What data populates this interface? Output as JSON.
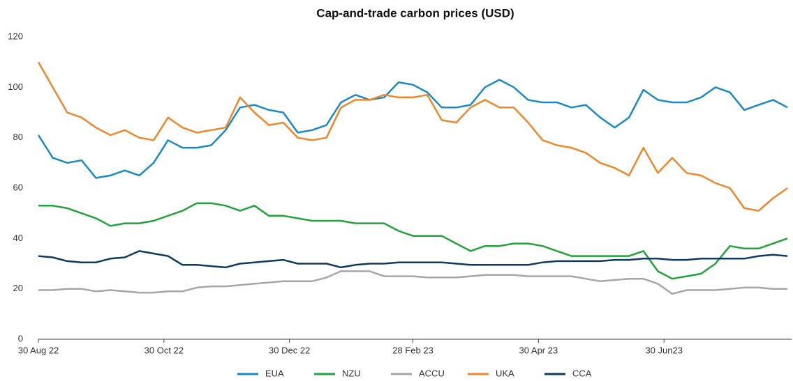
{
  "chart_data": {
    "type": "line",
    "title": "Cap-and-trade carbon prices (USD)",
    "x": [
      "2022-08-30",
      "2022-09-06",
      "2022-09-13",
      "2022-09-20",
      "2022-09-27",
      "2022-10-04",
      "2022-10-11",
      "2022-10-18",
      "2022-10-25",
      "2022-11-01",
      "2022-11-08",
      "2022-11-15",
      "2022-11-22",
      "2022-11-29",
      "2022-12-06",
      "2022-12-13",
      "2022-12-20",
      "2022-12-27",
      "2023-01-03",
      "2023-01-10",
      "2023-01-17",
      "2023-01-24",
      "2023-01-31",
      "2023-02-07",
      "2023-02-14",
      "2023-02-21",
      "2023-02-28",
      "2023-03-07",
      "2023-03-14",
      "2023-03-21",
      "2023-03-28",
      "2023-04-04",
      "2023-04-11",
      "2023-04-18",
      "2023-04-25",
      "2023-05-02",
      "2023-05-09",
      "2023-05-16",
      "2023-05-23",
      "2023-05-30",
      "2023-06-06",
      "2023-06-13",
      "2023-06-20",
      "2023-06-27",
      "2023-07-04",
      "2023-07-11",
      "2023-07-18",
      "2023-07-25",
      "2023-08-01",
      "2023-08-08",
      "2023-08-15",
      "2023-08-22",
      "2023-08-29"
    ],
    "series": [
      {
        "name": "EUA",
        "color": "#1a8ac6",
        "values": [
          81,
          72,
          70,
          71,
          64,
          65,
          67,
          65,
          70,
          79,
          76,
          76,
          77,
          83,
          92,
          93,
          91,
          90,
          82,
          83,
          85,
          94,
          97,
          95,
          96,
          102,
          101,
          98,
          92,
          92,
          93,
          100,
          103,
          100,
          95,
          94,
          94,
          92,
          93,
          88,
          84,
          88,
          99,
          95,
          94,
          94,
          96,
          100,
          98,
          91,
          93,
          95,
          92
        ]
      },
      {
        "name": "NZU",
        "color": "#22a33a",
        "values": [
          53,
          53,
          52,
          50,
          48,
          45,
          46,
          46,
          47,
          49,
          51,
          54,
          54,
          53,
          51,
          53,
          49,
          49,
          48,
          47,
          47,
          47,
          46,
          46,
          46,
          43,
          41,
          41,
          41,
          38,
          35,
          37,
          37,
          38,
          38,
          37,
          35,
          33,
          33,
          33,
          33,
          33,
          35,
          27,
          24,
          25,
          26,
          30,
          37,
          36,
          36,
          38,
          40
        ]
      },
      {
        "name": "ACCU",
        "color": "#a6a6a6",
        "values": [
          19.5,
          19.5,
          20,
          20,
          19,
          19.5,
          19,
          18.5,
          18.5,
          19,
          19,
          20.5,
          21,
          21,
          21.5,
          22,
          22.5,
          23,
          23,
          23,
          24.5,
          27,
          27,
          27,
          25,
          25,
          25,
          24.5,
          24.5,
          24.5,
          25,
          25.5,
          25.5,
          25.5,
          25,
          25,
          25,
          25,
          24,
          23,
          23.5,
          24,
          24,
          22,
          18,
          19.5,
          19.5,
          19.5,
          20,
          20.5,
          20.5,
          20,
          20
        ]
      },
      {
        "name": "UKA",
        "color": "#f0862b",
        "values": [
          110,
          100,
          90,
          88,
          84,
          81,
          83,
          80,
          79,
          88,
          84,
          82,
          83,
          84,
          96,
          90,
          85,
          86,
          80,
          79,
          80,
          92,
          95,
          95,
          97,
          96,
          96,
          97,
          87,
          86,
          92,
          95,
          92,
          92,
          86,
          79,
          77,
          76,
          74,
          70,
          68,
          65,
          76,
          66,
          72,
          66,
          65,
          62,
          60,
          52,
          51,
          56,
          60
        ]
      },
      {
        "name": "CCA",
        "color": "#0d3a5e",
        "values": [
          33,
          32.5,
          31,
          30.5,
          30.5,
          32,
          32.5,
          35,
          34,
          33,
          29.5,
          29.5,
          29,
          28.5,
          30,
          30.5,
          31,
          31.5,
          30,
          30,
          30,
          28.5,
          29.5,
          30,
          30,
          30.5,
          30.5,
          30.5,
          30.5,
          30,
          29.5,
          29.5,
          29.5,
          29.5,
          29.5,
          30.5,
          31,
          31,
          31,
          31,
          31.5,
          31.5,
          32,
          32,
          31.5,
          31.5,
          32,
          32,
          32,
          32,
          33,
          33.5,
          33
        ]
      }
    ],
    "xlim": [
      "2022-08-30",
      "2023-08-31"
    ],
    "xticks": [
      {
        "value": "2022-08-30",
        "label": "30 Aug 22"
      },
      {
        "value": "2022-10-30",
        "label": "30 Oct 22"
      },
      {
        "value": "2022-12-30",
        "label": "30 Dec 22"
      },
      {
        "value": "2023-02-28",
        "label": "28 Feb 23"
      },
      {
        "value": "2023-04-30",
        "label": "30 Apr 23"
      },
      {
        "value": "2023-06-30",
        "label": "30 Jun23"
      }
    ],
    "ylim": [
      0,
      120
    ],
    "yticks": [
      0,
      20,
      40,
      60,
      80,
      100,
      120
    ],
    "grid": false,
    "legend": "bottom"
  }
}
